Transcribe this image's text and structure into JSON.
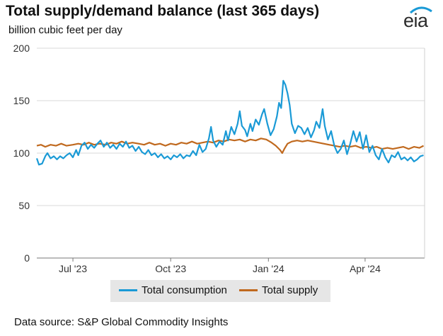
{
  "title": "Total supply/demand balance (last 365 days)",
  "subtitle": "billion cubic feet per day",
  "logo": {
    "text": "eia",
    "icon": "eia-logo-arc",
    "arc_color": "#1a9ad6"
  },
  "source": "Data source: S&P Global Commodity Insights",
  "chart_data": {
    "type": "line",
    "xlabel": "",
    "ylabel": "billion cubic feet per day",
    "x_start": "2023-05-28",
    "x_end": "2024-05-27",
    "ylim": [
      0,
      200
    ],
    "yticks": [
      0,
      50,
      100,
      150,
      200
    ],
    "xticks": [
      {
        "date": "2023-07-01",
        "label": "Jul '23"
      },
      {
        "date": "2023-10-01",
        "label": "Oct '23"
      },
      {
        "date": "2024-01-01",
        "label": "Jan '24"
      },
      {
        "date": "2024-04-01",
        "label": "Apr '24"
      }
    ],
    "grid": "horizontal",
    "legend_placement": "bottom",
    "series": [
      {
        "name": "Total consumption",
        "color": "#1a9ad6",
        "points": [
          [
            "2023-05-28",
            95
          ],
          [
            "2023-05-30",
            89
          ],
          [
            "2023-06-02",
            90
          ],
          [
            "2023-06-05",
            97
          ],
          [
            "2023-06-07",
            100
          ],
          [
            "2023-06-10",
            95
          ],
          [
            "2023-06-13",
            97
          ],
          [
            "2023-06-16",
            94
          ],
          [
            "2023-06-19",
            97
          ],
          [
            "2023-06-22",
            95
          ],
          [
            "2023-06-25",
            98
          ],
          [
            "2023-06-28",
            100
          ],
          [
            "2023-07-01",
            96
          ],
          [
            "2023-07-04",
            103
          ],
          [
            "2023-07-06",
            98
          ],
          [
            "2023-07-09",
            107
          ],
          [
            "2023-07-12",
            110
          ],
          [
            "2023-07-15",
            104
          ],
          [
            "2023-07-18",
            108
          ],
          [
            "2023-07-21",
            105
          ],
          [
            "2023-07-24",
            109
          ],
          [
            "2023-07-27",
            112
          ],
          [
            "2023-07-30",
            106
          ],
          [
            "2023-08-02",
            110
          ],
          [
            "2023-08-05",
            105
          ],
          [
            "2023-08-08",
            108
          ],
          [
            "2023-08-11",
            104
          ],
          [
            "2023-08-14",
            109
          ],
          [
            "2023-08-17",
            106
          ],
          [
            "2023-08-20",
            111
          ],
          [
            "2023-08-23",
            105
          ],
          [
            "2023-08-26",
            107
          ],
          [
            "2023-08-29",
            102
          ],
          [
            "2023-09-01",
            106
          ],
          [
            "2023-09-04",
            101
          ],
          [
            "2023-09-07",
            99
          ],
          [
            "2023-09-10",
            103
          ],
          [
            "2023-09-13",
            98
          ],
          [
            "2023-09-16",
            100
          ],
          [
            "2023-09-19",
            96
          ],
          [
            "2023-09-22",
            99
          ],
          [
            "2023-09-25",
            95
          ],
          [
            "2023-09-28",
            97
          ],
          [
            "2023-10-01",
            94
          ],
          [
            "2023-10-04",
            98
          ],
          [
            "2023-10-07",
            96
          ],
          [
            "2023-10-10",
            99
          ],
          [
            "2023-10-13",
            95
          ],
          [
            "2023-10-16",
            98
          ],
          [
            "2023-10-19",
            97
          ],
          [
            "2023-10-22",
            102
          ],
          [
            "2023-10-25",
            98
          ],
          [
            "2023-10-28",
            108
          ],
          [
            "2023-10-31",
            101
          ],
          [
            "2023-11-03",
            104
          ],
          [
            "2023-11-06",
            114
          ],
          [
            "2023-11-08",
            125
          ],
          [
            "2023-11-10",
            112
          ],
          [
            "2023-11-13",
            106
          ],
          [
            "2023-11-16",
            111
          ],
          [
            "2023-11-19",
            108
          ],
          [
            "2023-11-22",
            121
          ],
          [
            "2023-11-24",
            112
          ],
          [
            "2023-11-27",
            125
          ],
          [
            "2023-11-30",
            118
          ],
          [
            "2023-12-03",
            128
          ],
          [
            "2023-12-05",
            140
          ],
          [
            "2023-12-07",
            126
          ],
          [
            "2023-12-10",
            122
          ],
          [
            "2023-12-12",
            116
          ],
          [
            "2023-12-15",
            128
          ],
          [
            "2023-12-17",
            121
          ],
          [
            "2023-12-20",
            132
          ],
          [
            "2023-12-23",
            127
          ],
          [
            "2023-12-26",
            137
          ],
          [
            "2023-12-28",
            142
          ],
          [
            "2023-12-31",
            128
          ],
          [
            "2024-01-03",
            117
          ],
          [
            "2024-01-06",
            123
          ],
          [
            "2024-01-09",
            135
          ],
          [
            "2024-01-11",
            148
          ],
          [
            "2024-01-13",
            143
          ],
          [
            "2024-01-15",
            169
          ],
          [
            "2024-01-17",
            165
          ],
          [
            "2024-01-19",
            157
          ],
          [
            "2024-01-21",
            146
          ],
          [
            "2024-01-23",
            128
          ],
          [
            "2024-01-26",
            119
          ],
          [
            "2024-01-29",
            126
          ],
          [
            "2024-02-01",
            124
          ],
          [
            "2024-02-04",
            118
          ],
          [
            "2024-02-07",
            124
          ],
          [
            "2024-02-10",
            115
          ],
          [
            "2024-02-13",
            122
          ],
          [
            "2024-02-15",
            130
          ],
          [
            "2024-02-18",
            124
          ],
          [
            "2024-02-21",
            142
          ],
          [
            "2024-02-23",
            126
          ],
          [
            "2024-02-26",
            113
          ],
          [
            "2024-02-29",
            121
          ],
          [
            "2024-03-03",
            107
          ],
          [
            "2024-03-06",
            100
          ],
          [
            "2024-03-09",
            104
          ],
          [
            "2024-03-12",
            112
          ],
          [
            "2024-03-15",
            99
          ],
          [
            "2024-03-18",
            109
          ],
          [
            "2024-03-21",
            121
          ],
          [
            "2024-03-24",
            111
          ],
          [
            "2024-03-27",
            120
          ],
          [
            "2024-03-30",
            104
          ],
          [
            "2024-04-02",
            117
          ],
          [
            "2024-04-05",
            101
          ],
          [
            "2024-04-08",
            107
          ],
          [
            "2024-04-11",
            98
          ],
          [
            "2024-04-14",
            94
          ],
          [
            "2024-04-17",
            104
          ],
          [
            "2024-04-20",
            96
          ],
          [
            "2024-04-23",
            91
          ],
          [
            "2024-04-26",
            98
          ],
          [
            "2024-04-29",
            96
          ],
          [
            "2024-05-02",
            101
          ],
          [
            "2024-05-05",
            94
          ],
          [
            "2024-05-08",
            96
          ],
          [
            "2024-05-11",
            93
          ],
          [
            "2024-05-14",
            96
          ],
          [
            "2024-05-17",
            92
          ],
          [
            "2024-05-20",
            94
          ],
          [
            "2024-05-23",
            97
          ],
          [
            "2024-05-26",
            98
          ]
        ]
      },
      {
        "name": "Total supply",
        "color": "#c0691e",
        "points": [
          [
            "2023-05-28",
            107
          ],
          [
            "2023-06-01",
            108
          ],
          [
            "2023-06-05",
            106
          ],
          [
            "2023-06-10",
            108
          ],
          [
            "2023-06-15",
            107
          ],
          [
            "2023-06-20",
            109
          ],
          [
            "2023-06-25",
            107
          ],
          [
            "2023-07-01",
            108
          ],
          [
            "2023-07-06",
            109
          ],
          [
            "2023-07-11",
            108
          ],
          [
            "2023-07-16",
            110
          ],
          [
            "2023-07-21",
            108
          ],
          [
            "2023-07-26",
            109
          ],
          [
            "2023-08-01",
            108
          ],
          [
            "2023-08-06",
            110
          ],
          [
            "2023-08-11",
            109
          ],
          [
            "2023-08-16",
            111
          ],
          [
            "2023-08-21",
            109
          ],
          [
            "2023-08-26",
            110
          ],
          [
            "2023-09-01",
            109
          ],
          [
            "2023-09-06",
            108
          ],
          [
            "2023-09-11",
            110
          ],
          [
            "2023-09-16",
            108
          ],
          [
            "2023-09-21",
            109
          ],
          [
            "2023-09-26",
            107
          ],
          [
            "2023-10-01",
            109
          ],
          [
            "2023-10-06",
            108
          ],
          [
            "2023-10-11",
            110
          ],
          [
            "2023-10-16",
            109
          ],
          [
            "2023-10-21",
            111
          ],
          [
            "2023-10-26",
            109
          ],
          [
            "2023-10-31",
            110
          ],
          [
            "2023-11-05",
            111
          ],
          [
            "2023-11-10",
            110
          ],
          [
            "2023-11-15",
            112
          ],
          [
            "2023-11-20",
            111
          ],
          [
            "2023-11-25",
            113
          ],
          [
            "2023-11-30",
            112
          ],
          [
            "2023-12-05",
            113
          ],
          [
            "2023-12-10",
            111
          ],
          [
            "2023-12-15",
            113
          ],
          [
            "2023-12-20",
            112
          ],
          [
            "2023-12-25",
            114
          ],
          [
            "2023-12-30",
            113
          ],
          [
            "2024-01-04",
            110
          ],
          [
            "2024-01-08",
            107
          ],
          [
            "2024-01-12",
            103
          ],
          [
            "2024-01-14",
            100
          ],
          [
            "2024-01-16",
            104
          ],
          [
            "2024-01-19",
            109
          ],
          [
            "2024-01-23",
            111
          ],
          [
            "2024-01-28",
            112
          ],
          [
            "2024-02-02",
            111
          ],
          [
            "2024-02-07",
            112
          ],
          [
            "2024-02-12",
            111
          ],
          [
            "2024-02-17",
            110
          ],
          [
            "2024-02-22",
            109
          ],
          [
            "2024-02-27",
            108
          ],
          [
            "2024-03-03",
            107
          ],
          [
            "2024-03-08",
            106
          ],
          [
            "2024-03-13",
            107
          ],
          [
            "2024-03-18",
            106
          ],
          [
            "2024-03-23",
            107
          ],
          [
            "2024-03-28",
            105
          ],
          [
            "2024-04-02",
            106
          ],
          [
            "2024-04-07",
            105
          ],
          [
            "2024-04-12",
            106
          ],
          [
            "2024-04-17",
            104
          ],
          [
            "2024-04-22",
            105
          ],
          [
            "2024-04-27",
            104
          ],
          [
            "2024-05-02",
            105
          ],
          [
            "2024-05-07",
            106
          ],
          [
            "2024-05-12",
            104
          ],
          [
            "2024-05-17",
            106
          ],
          [
            "2024-05-22",
            105
          ],
          [
            "2024-05-26",
            107
          ]
        ]
      }
    ]
  }
}
